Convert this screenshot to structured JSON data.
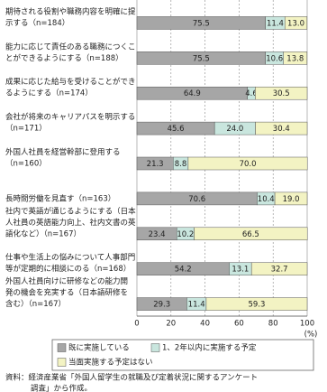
{
  "chart_data": {
    "type": "stacked-barh",
    "categories": [
      [
        "期待される役割や職務内容を明確に提",
        "示する（n=184）"
      ],
      [
        "能力に応じて責任のある職務につくこ",
        "とができるようにする（n=188）"
      ],
      [
        "成果に応じた給与を受けることができ",
        "るようにする（n=174）"
      ],
      [
        "会社が将来のキャリアパスを明示する",
        "（n=171）"
      ],
      [
        "外国人社員を経営幹部に登用する",
        "（n=160）"
      ],
      [
        "長時間労働を見直す（n=163）"
      ],
      [
        "社内で英語が通じるようにする（日本",
        "人社員の英語能力向上、社内文書の英",
        "語化など）（n=167）"
      ],
      [
        "仕事や生活上の悩みについて人事部門",
        "等が定期的に相談にのる（n=168）"
      ],
      [
        "外国人社員向けに研修などの能力開",
        "発の機会を充実する（日本語研修を",
        "含む）（n=167）"
      ]
    ],
    "series": [
      {
        "name": "既に実施している",
        "color": "#a6a6a6",
        "values": [
          75.5,
          75.5,
          64.9,
          45.6,
          21.3,
          70.6,
          23.4,
          54.2,
          29.3
        ],
        "value_labels": [
          "75.5",
          "75.5",
          "64.9",
          "45.6",
          "21.3",
          "70.6",
          "23.4",
          "54.2",
          "29.3"
        ]
      },
      {
        "name": "1、2年以内に実施する予定",
        "color": "#c9e6de",
        "values": [
          11.4,
          10.6,
          4.6,
          24.0,
          8.8,
          10.4,
          10.2,
          13.1,
          11.4
        ],
        "value_labels": [
          "11.4",
          "10.6",
          "4.6",
          "24.0",
          "8.8",
          "10.4",
          "10.2",
          "13.1",
          "11.4"
        ]
      },
      {
        "name": "当面実施する予定はない",
        "color": "#f3f3c3",
        "values": [
          13.0,
          13.8,
          30.5,
          30.4,
          70.0,
          19.0,
          66.5,
          32.7,
          59.3
        ],
        "value_labels": [
          "13.0",
          "13.8",
          "30.5",
          "30.4",
          "70.0",
          "19.0",
          "66.5",
          "32.7",
          "59.3"
        ]
      }
    ],
    "xlim": [
      0,
      100
    ],
    "xticks": [
      0,
      20,
      40,
      60,
      80,
      100
    ],
    "x_unit": "(%)",
    "grid": true,
    "source": [
      "資料：経済産業省「外国人留学生の就職及び定着状況に関するアンケート",
      "調査」から作成。"
    ]
  }
}
